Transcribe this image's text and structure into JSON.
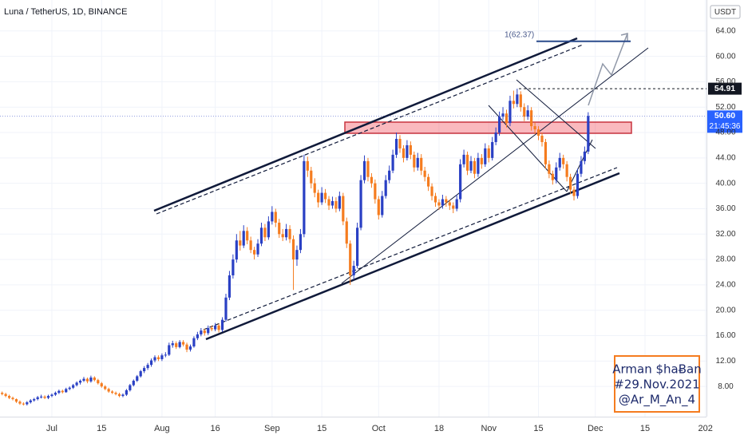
{
  "chart_data": {
    "type": "candlestick",
    "title": "Luna / TetherUS, 1D, BINANCE",
    "currency": "USDT",
    "up_color": "#2a40c4",
    "down_color": "#f57c1f",
    "grid": true,
    "ylim": [
      3.24,
      68.88
    ],
    "yticks": [
      {
        "value": 8,
        "label": "8.00"
      },
      {
        "value": 12,
        "label": "12.00"
      },
      {
        "value": 16,
        "label": "16.00"
      },
      {
        "value": 20,
        "label": "20.00"
      },
      {
        "value": 24,
        "label": "24.00"
      },
      {
        "value": 28,
        "label": "28.00"
      },
      {
        "value": 32,
        "label": "32.00"
      },
      {
        "value": 36,
        "label": "36.00"
      },
      {
        "value": 40,
        "label": "40.00"
      },
      {
        "value": 44,
        "label": "44.00"
      },
      {
        "value": 48,
        "label": "48.00"
      },
      {
        "value": 52,
        "label": "52.00"
      },
      {
        "value": 56,
        "label": "56.00"
      },
      {
        "value": 60,
        "label": "60.00"
      },
      {
        "value": 64,
        "label": "64.00"
      }
    ],
    "xlim": [
      -14.6,
      184.3
    ],
    "xticks": [
      {
        "value": 0,
        "label": "Jul"
      },
      {
        "value": 14,
        "label": "15"
      },
      {
        "value": 31,
        "label": "Aug"
      },
      {
        "value": 46,
        "label": "16"
      },
      {
        "value": 62,
        "label": "Sep"
      },
      {
        "value": 76,
        "label": "15"
      },
      {
        "value": 92,
        "label": "Oct"
      },
      {
        "value": 109,
        "label": "18"
      },
      {
        "value": 123,
        "label": "Nov"
      },
      {
        "value": 137,
        "label": "15"
      },
      {
        "value": 153,
        "label": "Dec"
      },
      {
        "value": 167,
        "label": "15"
      },
      {
        "value": 184,
        "label": "202"
      }
    ],
    "x": [
      -14,
      -13,
      -12,
      -11,
      -10,
      -9,
      -8,
      -7,
      -6,
      -5,
      -4,
      -3,
      -2,
      -1,
      0,
      1,
      2,
      3,
      4,
      5,
      6,
      7,
      8,
      9,
      10,
      11,
      12,
      13,
      14,
      15,
      16,
      17,
      18,
      19,
      20,
      21,
      22,
      23,
      24,
      25,
      26,
      27,
      28,
      29,
      30,
      31,
      32,
      33,
      34,
      35,
      36,
      37,
      38,
      39,
      40,
      41,
      42,
      43,
      44,
      45,
      46,
      47,
      48,
      49,
      50,
      51,
      52,
      53,
      54,
      55,
      56,
      57,
      58,
      59,
      60,
      61,
      62,
      63,
      64,
      65,
      66,
      67,
      68,
      69,
      70,
      71,
      72,
      73,
      74,
      75,
      76,
      77,
      78,
      79,
      80,
      81,
      82,
      83,
      84,
      85,
      86,
      87,
      88,
      89,
      90,
      91,
      92,
      93,
      94,
      95,
      96,
      97,
      98,
      99,
      100,
      101,
      102,
      103,
      104,
      105,
      106,
      107,
      108,
      109,
      110,
      111,
      112,
      113,
      114,
      115,
      116,
      117,
      118,
      119,
      120,
      121,
      122,
      123,
      124,
      125,
      126,
      127,
      128,
      129,
      130,
      131,
      132,
      133,
      134,
      135,
      136,
      137,
      138,
      139,
      140,
      141,
      142,
      143,
      144,
      145,
      146,
      147,
      148,
      149,
      150,
      151
    ],
    "candles": [
      [
        7.0,
        7.2,
        6.6,
        6.8
      ],
      [
        6.8,
        7.0,
        6.3,
        6.5
      ],
      [
        6.5,
        6.7,
        6.0,
        6.2
      ],
      [
        6.2,
        6.4,
        5.8,
        6.0
      ],
      [
        6.0,
        6.1,
        5.4,
        5.6
      ],
      [
        5.6,
        5.8,
        5.1,
        5.3
      ],
      [
        5.3,
        5.5,
        5.0,
        5.2
      ],
      [
        5.2,
        5.7,
        5.0,
        5.5
      ],
      [
        5.5,
        6.0,
        5.3,
        5.8
      ],
      [
        5.8,
        6.2,
        5.6,
        6.0
      ],
      [
        6.0,
        6.5,
        5.8,
        6.3
      ],
      [
        6.3,
        6.7,
        6.1,
        6.4
      ],
      [
        6.4,
        6.6,
        6.0,
        6.2
      ],
      [
        6.2,
        6.7,
        6.0,
        6.5
      ],
      [
        6.5,
        6.9,
        6.3,
        6.7
      ],
      [
        6.7,
        7.2,
        6.5,
        7.0
      ],
      [
        7.0,
        7.5,
        6.8,
        7.3
      ],
      [
        7.3,
        7.5,
        6.9,
        7.1
      ],
      [
        7.1,
        7.8,
        7.0,
        7.6
      ],
      [
        7.6,
        8.0,
        7.4,
        7.8
      ],
      [
        7.8,
        8.4,
        7.6,
        8.2
      ],
      [
        8.2,
        8.8,
        8.0,
        8.6
      ],
      [
        8.6,
        9.1,
        8.3,
        8.9
      ],
      [
        8.9,
        9.5,
        8.7,
        9.2
      ],
      [
        9.2,
        9.4,
        8.5,
        8.8
      ],
      [
        8.8,
        9.7,
        8.6,
        9.4
      ],
      [
        9.4,
        9.6,
        8.8,
        9.0
      ],
      [
        9.0,
        9.2,
        8.3,
        8.5
      ],
      [
        8.5,
        8.7,
        7.8,
        8.0
      ],
      [
        8.0,
        8.2,
        7.4,
        7.6
      ],
      [
        7.6,
        7.8,
        7.0,
        7.2
      ],
      [
        7.2,
        7.4,
        6.8,
        7.0
      ],
      [
        7.0,
        7.2,
        6.6,
        6.8
      ],
      [
        6.8,
        7.0,
        6.3,
        6.5
      ],
      [
        6.5,
        6.9,
        6.3,
        6.7
      ],
      [
        6.7,
        7.6,
        6.5,
        7.4
      ],
      [
        7.4,
        8.4,
        7.2,
        8.2
      ],
      [
        8.2,
        9.1,
        8.0,
        8.9
      ],
      [
        8.9,
        9.8,
        8.7,
        9.6
      ],
      [
        9.6,
        10.6,
        9.4,
        10.4
      ],
      [
        10.4,
        11.2,
        10.1,
        10.9
      ],
      [
        10.9,
        11.7,
        10.6,
        11.4
      ],
      [
        11.4,
        12.4,
        11.1,
        12.1
      ],
      [
        12.1,
        12.9,
        11.8,
        12.6
      ],
      [
        12.6,
        12.9,
        12.0,
        12.3
      ],
      [
        12.3,
        13.2,
        12.0,
        12.9
      ],
      [
        12.9,
        13.4,
        12.6,
        13.0
      ],
      [
        13.0,
        14.9,
        12.8,
        14.5
      ],
      [
        14.5,
        15.2,
        14.1,
        14.8
      ],
      [
        14.8,
        15.1,
        13.9,
        14.2
      ],
      [
        14.2,
        15.3,
        14.0,
        15.0
      ],
      [
        15.0,
        15.3,
        14.3,
        14.6
      ],
      [
        14.6,
        14.9,
        13.4,
        13.8
      ],
      [
        13.8,
        14.6,
        13.5,
        14.3
      ],
      [
        14.3,
        15.9,
        14.1,
        15.6
      ],
      [
        15.6,
        16.6,
        15.3,
        16.2
      ],
      [
        16.2,
        17.2,
        15.9,
        16.8
      ],
      [
        16.8,
        17.1,
        16.0,
        16.4
      ],
      [
        16.4,
        17.6,
        16.1,
        17.2
      ],
      [
        17.2,
        17.6,
        16.7,
        17.0
      ],
      [
        17.0,
        18.0,
        16.7,
        17.6
      ],
      [
        17.6,
        17.9,
        16.5,
        16.9
      ],
      [
        16.9,
        18.9,
        16.6,
        18.5
      ],
      [
        18.5,
        22.6,
        18.2,
        22.0
      ],
      [
        22.0,
        26.2,
        21.6,
        25.5
      ],
      [
        25.5,
        28.8,
        25.0,
        28.0
      ],
      [
        28.0,
        32.0,
        27.5,
        31.0
      ],
      [
        31.0,
        32.5,
        29.4,
        30.2
      ],
      [
        30.2,
        33.4,
        29.8,
        32.5
      ],
      [
        32.5,
        33.1,
        30.4,
        31.0
      ],
      [
        31.0,
        31.6,
        29.0,
        29.5
      ],
      [
        29.5,
        30.0,
        28.0,
        28.8
      ],
      [
        28.8,
        31.2,
        28.4,
        30.5
      ],
      [
        30.5,
        33.8,
        30.1,
        33.0
      ],
      [
        33.0,
        33.6,
        30.9,
        31.5
      ],
      [
        31.5,
        34.8,
        31.1,
        34.0
      ],
      [
        34.0,
        36.4,
        33.5,
        35.5
      ],
      [
        35.5,
        36.0,
        33.1,
        33.8
      ],
      [
        33.8,
        34.4,
        31.4,
        32.0
      ],
      [
        32.0,
        32.8,
        30.9,
        31.5
      ],
      [
        31.5,
        33.6,
        31.0,
        32.8
      ],
      [
        32.8,
        33.4,
        30.6,
        31.2
      ],
      [
        31.2,
        31.8,
        23.2,
        28.0
      ],
      [
        28.0,
        30.2,
        27.0,
        29.5
      ],
      [
        29.5,
        32.8,
        29.0,
        32.0
      ],
      [
        32.0,
        44.5,
        31.5,
        43.5
      ],
      [
        43.5,
        44.2,
        41.0,
        42.0
      ],
      [
        42.0,
        42.6,
        39.2,
        40.0
      ],
      [
        40.0,
        40.8,
        37.8,
        38.5
      ],
      [
        38.5,
        39.0,
        36.2,
        37.0
      ],
      [
        37.0,
        39.4,
        36.6,
        38.5
      ],
      [
        38.5,
        39.1,
        36.9,
        37.5
      ],
      [
        37.5,
        38.0,
        35.8,
        36.5
      ],
      [
        36.5,
        37.9,
        36.0,
        37.2
      ],
      [
        37.2,
        37.8,
        35.4,
        36.0
      ],
      [
        36.0,
        38.7,
        35.6,
        38.0
      ],
      [
        38.0,
        38.5,
        33.4,
        34.0
      ],
      [
        34.0,
        34.6,
        29.8,
        30.5
      ],
      [
        30.5,
        31.0,
        24.0,
        25.5
      ],
      [
        25.5,
        27.8,
        24.8,
        27.0
      ],
      [
        27.0,
        33.8,
        26.6,
        33.0
      ],
      [
        33.0,
        41.3,
        32.6,
        40.5
      ],
      [
        40.5,
        44.4,
        40.0,
        43.5
      ],
      [
        43.5,
        44.0,
        40.3,
        41.0
      ],
      [
        41.0,
        41.6,
        39.3,
        40.0
      ],
      [
        40.0,
        40.6,
        36.8,
        37.5
      ],
      [
        37.5,
        38.0,
        34.3,
        35.0
      ],
      [
        35.0,
        38.8,
        34.6,
        38.0
      ],
      [
        38.0,
        41.3,
        37.6,
        40.5
      ],
      [
        40.5,
        42.8,
        40.0,
        42.0
      ],
      [
        42.0,
        45.3,
        41.6,
        44.5
      ],
      [
        44.5,
        48.0,
        44.0,
        47.0
      ],
      [
        47.0,
        47.6,
        44.8,
        45.5
      ],
      [
        45.5,
        46.0,
        43.3,
        44.0
      ],
      [
        44.0,
        46.8,
        43.6,
        46.0
      ],
      [
        46.0,
        46.6,
        43.8,
        44.5
      ],
      [
        44.5,
        45.0,
        41.8,
        42.5
      ],
      [
        42.5,
        44.8,
        42.0,
        44.0
      ],
      [
        44.0,
        44.6,
        41.3,
        42.0
      ],
      [
        42.0,
        42.6,
        40.3,
        41.0
      ],
      [
        41.0,
        41.5,
        38.8,
        39.5
      ],
      [
        39.5,
        40.0,
        37.3,
        38.0
      ],
      [
        38.0,
        38.5,
        36.3,
        37.0
      ],
      [
        37.0,
        37.5,
        35.8,
        36.5
      ],
      [
        36.5,
        38.2,
        36.0,
        37.5
      ],
      [
        37.5,
        38.0,
        36.3,
        37.0
      ],
      [
        37.0,
        37.4,
        35.8,
        36.5
      ],
      [
        36.5,
        37.0,
        35.3,
        36.0
      ],
      [
        36.0,
        38.2,
        35.6,
        37.5
      ],
      [
        37.5,
        43.8,
        37.0,
        43.0
      ],
      [
        43.0,
        45.3,
        42.5,
        44.5
      ],
      [
        44.5,
        45.0,
        41.3,
        42.0
      ],
      [
        42.0,
        44.3,
        41.6,
        43.5
      ],
      [
        43.5,
        44.0,
        40.8,
        41.5
      ],
      [
        41.5,
        44.8,
        41.0,
        44.0
      ],
      [
        44.0,
        44.6,
        42.3,
        43.0
      ],
      [
        43.0,
        46.3,
        42.6,
        45.5
      ],
      [
        45.5,
        46.0,
        43.3,
        44.0
      ],
      [
        44.0,
        47.3,
        43.6,
        46.5
      ],
      [
        46.5,
        48.8,
        46.0,
        48.0
      ],
      [
        48.0,
        51.3,
        47.5,
        50.5
      ],
      [
        50.5,
        52.0,
        50.0,
        51.0
      ],
      [
        51.0,
        51.6,
        48.8,
        49.5
      ],
      [
        49.5,
        53.8,
        49.0,
        53.0
      ],
      [
        53.0,
        54.6,
        51.8,
        52.5
      ],
      [
        52.5,
        54.9,
        52.0,
        54.0
      ],
      [
        54.0,
        54.5,
        51.3,
        52.0
      ],
      [
        52.0,
        52.6,
        49.8,
        50.5
      ],
      [
        50.5,
        52.3,
        50.0,
        51.5
      ],
      [
        51.5,
        52.0,
        48.3,
        49.0
      ],
      [
        49.0,
        49.6,
        47.8,
        48.5
      ],
      [
        48.5,
        49.0,
        46.8,
        47.5
      ],
      [
        47.5,
        48.0,
        45.8,
        46.5
      ],
      [
        46.5,
        47.0,
        42.3,
        43.0
      ],
      [
        43.0,
        43.6,
        40.8,
        41.5
      ],
      [
        41.5,
        42.0,
        39.8,
        40.5
      ],
      [
        40.5,
        43.3,
        40.0,
        42.5
      ],
      [
        42.5,
        44.8,
        42.0,
        44.0
      ],
      [
        44.0,
        44.5,
        42.3,
        43.0
      ],
      [
        43.0,
        43.5,
        40.3,
        41.0
      ],
      [
        41.0,
        41.5,
        38.3,
        39.0
      ],
      [
        39.0,
        39.5,
        37.3,
        38.0
      ],
      [
        38.0,
        42.3,
        37.6,
        41.5
      ],
      [
        41.5,
        44.3,
        41.0,
        43.5
      ],
      [
        43.5,
        45.8,
        43.0,
        45.0
      ],
      [
        45.0,
        51.2,
        44.6,
        50.6
      ]
    ],
    "last_price": {
      "value": 50.6,
      "label": "50.60"
    },
    "countdown": "21:45:36",
    "level": {
      "value": 54.91,
      "label": "54.91"
    },
    "target": {
      "value": 62.37,
      "label": "1(62.37)"
    },
    "signature": [
      "Arman $haɃan",
      "#29.Nov.2021",
      "@Ar_M_An_4"
    ]
  }
}
